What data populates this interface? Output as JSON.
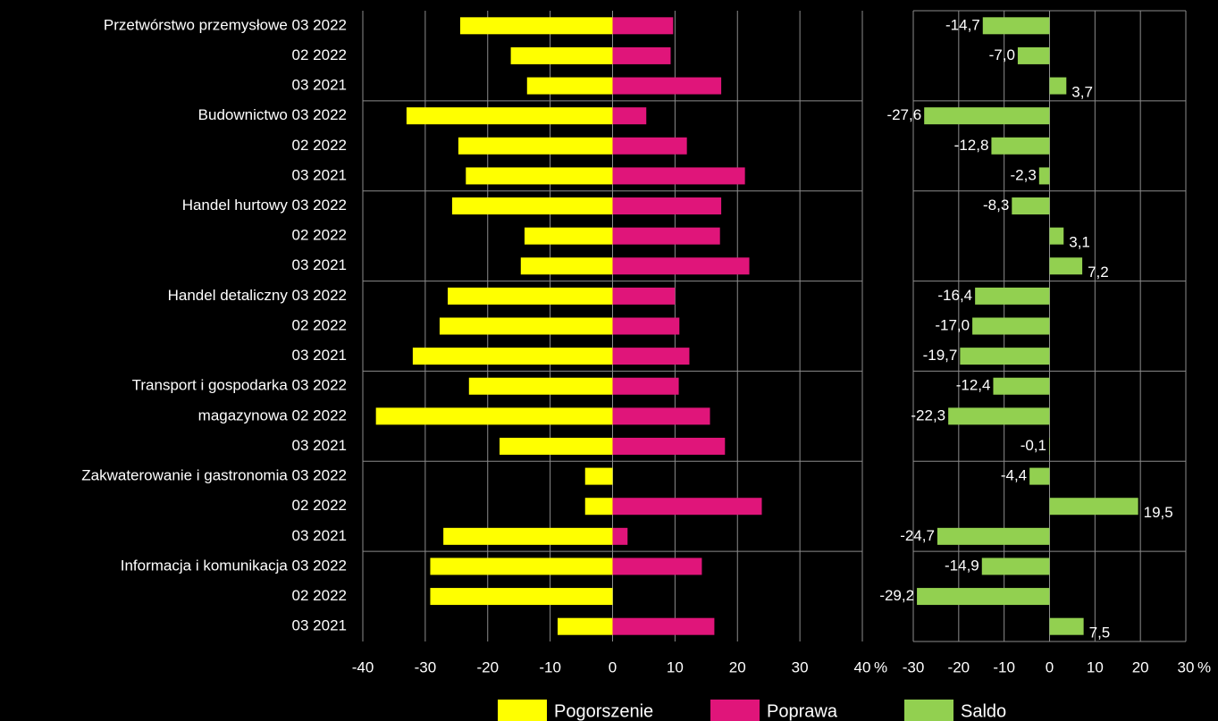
{
  "chart_data": [
    {
      "type": "bar",
      "categories": [
        "Przetwórstwo przemysłowe 03 2022",
        "02 2022",
        "03 2021",
        "Budownictwo 03 2022",
        "02 2022",
        "03 2021",
        "Handel hurtowy 03 2022",
        "02 2022",
        "03 2021",
        "Handel detaliczny 03 2022",
        "02 2022",
        "03 2021",
        "Transport i gospodarka 03 2022",
        "magazynowa  02 2022",
        "03 2021",
        "Zakwaterowanie i gastronomia 03 2022",
        "02 2022",
        "03 2021",
        "Informacja i komunikacja 03 2022",
        "02 2022",
        "03 2021"
      ],
      "series": [
        {
          "name": "Pogorszenie",
          "color": "#ffff00",
          "values": [
            -24.4,
            -16.3,
            -13.7,
            -33.0,
            -24.7,
            -23.5,
            -25.7,
            -14.1,
            -14.7,
            -26.4,
            -27.7,
            -32.0,
            -23.0,
            -37.9,
            -18.1,
            -4.4,
            -4.4,
            -27.1,
            -29.2,
            -29.2,
            -8.8
          ]
        },
        {
          "name": "Poprawa",
          "color": "#e0157a",
          "values": [
            9.7,
            9.3,
            17.4,
            5.4,
            11.9,
            21.2,
            17.4,
            17.2,
            21.9,
            10.0,
            10.7,
            12.3,
            10.6,
            15.6,
            18.0,
            0,
            23.9,
            2.4,
            14.3,
            0,
            16.3
          ]
        }
      ],
      "xlim": [
        -40,
        40
      ],
      "xticks": [
        -40,
        -30,
        -20,
        -10,
        0,
        10,
        20,
        30,
        40
      ],
      "xlabel": "%"
    },
    {
      "type": "bar",
      "series": [
        {
          "name": "Saldo",
          "color": "#92d050",
          "values": [
            -14.7,
            -7.0,
            3.7,
            -27.6,
            -12.8,
            -2.3,
            -8.3,
            3.1,
            7.2,
            -16.4,
            -17.0,
            -19.7,
            -12.4,
            -22.3,
            -0.1,
            -4.4,
            19.5,
            -24.7,
            -14.9,
            -29.2,
            7.5
          ],
          "value_labels": [
            "-14,7",
            "-7,0",
            "3,7",
            "-27,6",
            "-12,8",
            "-2,3",
            "-8,3",
            "3,1",
            "7,2",
            "-16,4",
            "-17,0",
            "-19,7",
            "-12,4",
            "-22,3",
            "-0,1",
            "-4,4",
            "19,5",
            "-24,7",
            "-14,9",
            "-29,2",
            "7,5"
          ]
        }
      ],
      "xlim": [
        -30,
        30
      ],
      "xticks": [
        -30,
        -20,
        -10,
        0,
        10,
        20,
        30
      ],
      "xlabel": "%"
    }
  ]
}
